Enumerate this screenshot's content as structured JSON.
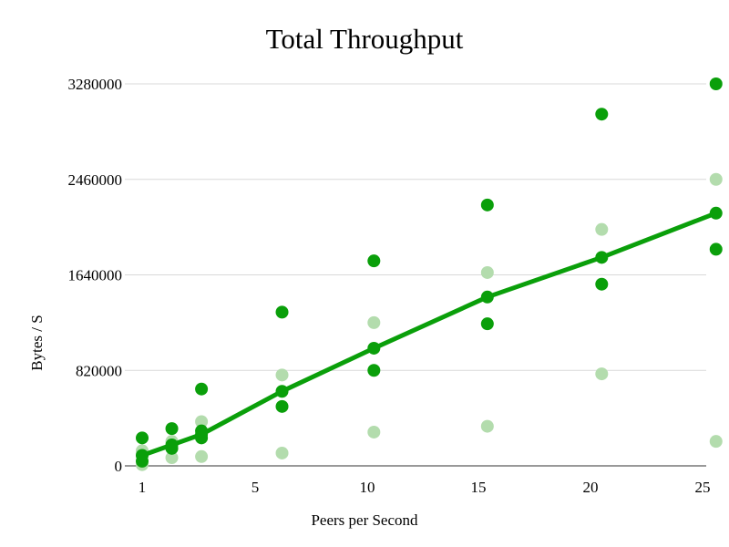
{
  "chart_data": {
    "type": "scatter",
    "title": "Total Throughput",
    "xlabel": "Peers per Second",
    "ylabel": "Bytes / S",
    "x_ticks": [
      1,
      5,
      10,
      15,
      20,
      25
    ],
    "y_ticks": [
      0,
      820000,
      1640000,
      2460000,
      3280000
    ],
    "xlim": [
      1,
      25
    ],
    "ylim": [
      0,
      3280000
    ],
    "grid": "horizontal",
    "legend": "none",
    "series": [
      {
        "style": "points",
        "color": "#0a9f0a",
        "points": [
          [
            1,
            40000
          ],
          [
            1,
            240000
          ],
          [
            2.05,
            150000
          ],
          [
            2.05,
            320000
          ],
          [
            3.1,
            240000
          ],
          [
            3.1,
            300000
          ],
          [
            3.1,
            660000
          ],
          [
            6.2,
            510000
          ],
          [
            6.2,
            1320000
          ],
          [
            10.3,
            820000
          ],
          [
            10.3,
            1760000
          ],
          [
            15.4,
            1220000
          ],
          [
            15.4,
            2240000
          ],
          [
            20.5,
            1560000
          ],
          [
            20.5,
            3020000
          ],
          [
            25.6,
            1860000
          ],
          [
            25.6,
            3280000
          ]
        ]
      },
      {
        "style": "points",
        "color": "#b3dcad",
        "points": [
          [
            1,
            10000
          ],
          [
            1,
            130000
          ],
          [
            2.05,
            70000
          ],
          [
            2.05,
            210000
          ],
          [
            3.1,
            80000
          ],
          [
            3.1,
            380000
          ],
          [
            6.2,
            110000
          ],
          [
            6.2,
            780000
          ],
          [
            10.3,
            290000
          ],
          [
            10.3,
            1230000
          ],
          [
            15.4,
            340000
          ],
          [
            15.4,
            1660000
          ],
          [
            20.5,
            790000
          ],
          [
            20.5,
            2030000
          ],
          [
            25.6,
            210000
          ],
          [
            25.6,
            2460000
          ]
        ]
      },
      {
        "style": "line",
        "color": "#0a9f0a",
        "points": [
          [
            1,
            90000
          ],
          [
            2.05,
            180000
          ],
          [
            3.1,
            270000
          ],
          [
            6.2,
            640000
          ],
          [
            10.3,
            1010000
          ],
          [
            15.4,
            1450000
          ],
          [
            20.5,
            1790000
          ],
          [
            25.6,
            2170000
          ]
        ]
      }
    ]
  }
}
